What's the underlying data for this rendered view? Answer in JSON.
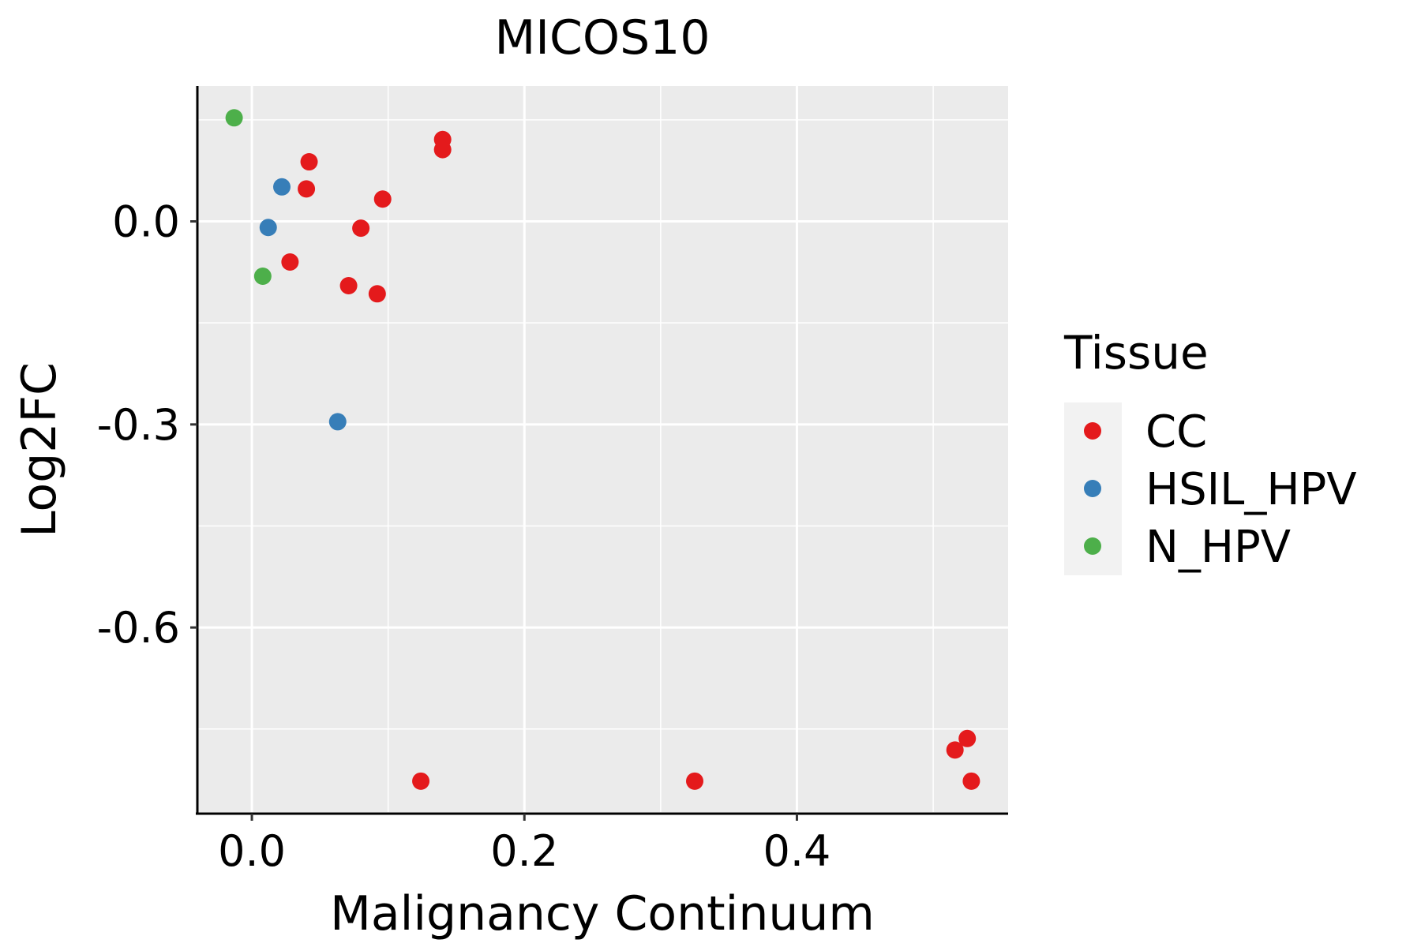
{
  "chart_data": {
    "type": "scatter",
    "title": "MICOS10",
    "xlabel": "Malignancy Continuum",
    "ylabel": "Log2FC",
    "xlim": [
      -0.04,
      0.555
    ],
    "ylim": [
      -0.875,
      0.2
    ],
    "x_ticks": [
      0.0,
      0.2,
      0.4
    ],
    "x_tick_labels": [
      "0.0",
      "0.2",
      "0.4"
    ],
    "y_ticks": [
      0.0,
      -0.3,
      -0.6
    ],
    "y_tick_labels": [
      "0.0",
      "-0.3",
      "-0.6"
    ],
    "grid": true,
    "legend": {
      "title": "Tissue",
      "position": "right"
    },
    "series": [
      {
        "name": "CC",
        "color": "#E41A1C",
        "points": [
          {
            "x": 0.042,
            "y": 0.088
          },
          {
            "x": 0.04,
            "y": 0.048
          },
          {
            "x": 0.028,
            "y": -0.06
          },
          {
            "x": 0.08,
            "y": -0.01
          },
          {
            "x": 0.096,
            "y": 0.033
          },
          {
            "x": 0.071,
            "y": -0.095
          },
          {
            "x": 0.092,
            "y": -0.107
          },
          {
            "x": 0.14,
            "y": 0.121
          },
          {
            "x": 0.14,
            "y": 0.106
          },
          {
            "x": 0.124,
            "y": -0.827
          },
          {
            "x": 0.325,
            "y": -0.827
          },
          {
            "x": 0.516,
            "y": -0.781
          },
          {
            "x": 0.525,
            "y": -0.764
          },
          {
            "x": 0.528,
            "y": -0.827
          }
        ]
      },
      {
        "name": "HSIL_HPV",
        "color": "#377EB8",
        "points": [
          {
            "x": 0.022,
            "y": 0.051
          },
          {
            "x": 0.012,
            "y": -0.009
          },
          {
            "x": 0.063,
            "y": -0.296
          }
        ]
      },
      {
        "name": "N_HPV",
        "color": "#4DAF4A",
        "points": [
          {
            "x": -0.013,
            "y": 0.153
          },
          {
            "x": 0.008,
            "y": -0.081
          }
        ]
      }
    ]
  }
}
